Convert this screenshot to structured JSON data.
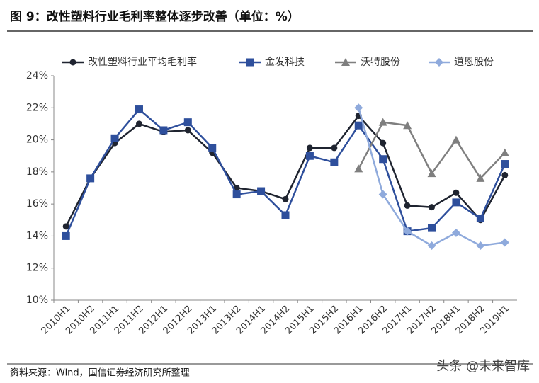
{
  "chart_data": {
    "type": "line",
    "title": "图 9：改性塑料行业毛利率整体逐步改善（单位：%）",
    "source": "资料来源：Wind，国信证券经济研究所整理",
    "watermark": "头条 @未来智库",
    "categories": [
      "2010H1",
      "2010H2",
      "2011H1",
      "2011H2",
      "2012H1",
      "2012H2",
      "2013H1",
      "2013H2",
      "2014H1",
      "2014H2",
      "2015H1",
      "2015H2",
      "2016H1",
      "2016H2",
      "2017H1",
      "2017H2",
      "2018H1",
      "2018H2",
      "2019H1"
    ],
    "series": [
      {
        "name": "改性塑料行业平均毛利率",
        "color": "#1f2430",
        "marker": "circle",
        "values": [
          14.6,
          17.6,
          19.8,
          21.0,
          20.5,
          20.6,
          19.2,
          17.0,
          16.8,
          16.3,
          19.5,
          19.5,
          21.5,
          19.8,
          15.9,
          15.8,
          16.7,
          15.0,
          17.8
        ]
      },
      {
        "name": "金发科技",
        "color": "#2e4f9c",
        "marker": "square",
        "values": [
          14.0,
          17.6,
          20.1,
          21.9,
          20.6,
          21.1,
          19.5,
          16.6,
          16.8,
          15.3,
          19.0,
          18.6,
          20.9,
          18.8,
          14.3,
          14.5,
          16.1,
          15.1,
          18.5
        ]
      },
      {
        "name": "沃特股份",
        "color": "#7f7f7f",
        "marker": "triangle",
        "values": [
          null,
          null,
          null,
          null,
          null,
          null,
          null,
          null,
          null,
          null,
          null,
          null,
          18.2,
          21.1,
          20.9,
          17.9,
          20.0,
          17.6,
          19.2
        ]
      },
      {
        "name": "道恩股份",
        "color": "#8faadc",
        "marker": "diamond",
        "values": [
          null,
          null,
          null,
          null,
          null,
          null,
          null,
          null,
          null,
          null,
          null,
          null,
          22.0,
          16.6,
          14.3,
          13.4,
          14.2,
          13.4,
          13.6
        ]
      }
    ],
    "ylim": [
      10,
      24
    ],
    "yticks": [
      {
        "value": 10,
        "label": "10%"
      },
      {
        "value": 12,
        "label": "12%"
      },
      {
        "value": 14,
        "label": "14%"
      },
      {
        "value": 16,
        "label": "16%"
      },
      {
        "value": 18,
        "label": "18%"
      },
      {
        "value": 20,
        "label": "20%"
      },
      {
        "value": 22,
        "label": "22%"
      },
      {
        "value": 24,
        "label": "24%"
      }
    ],
    "grid": false,
    "legend": "top"
  }
}
